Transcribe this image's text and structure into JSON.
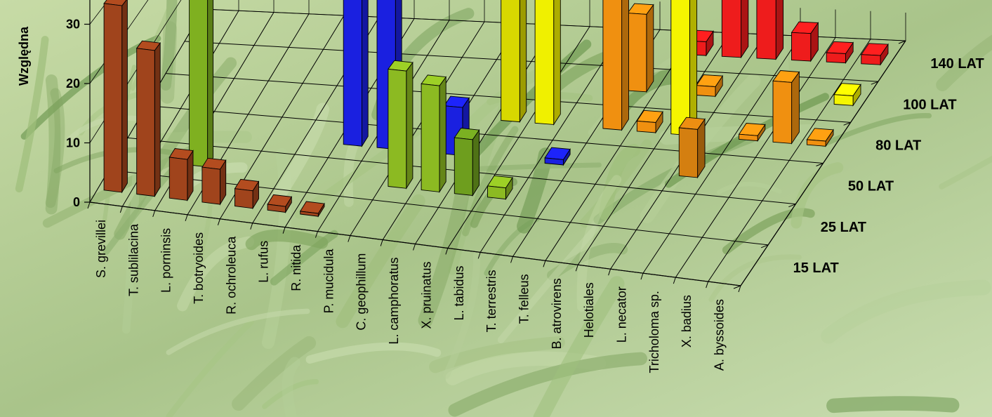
{
  "chart_data": {
    "type": "bar",
    "title": "",
    "ylabel": "Względna",
    "yticks": [
      "0",
      "10",
      "20",
      "30"
    ],
    "ylim": [
      0,
      32
    ],
    "categories": [
      "S. grevillei",
      "T. sublilacina",
      "L. porninsis",
      "T. botryoides",
      "R. ochroleuca",
      "L. rufus",
      "R. nitida",
      "P. mucidula",
      "C. geophillum",
      "L. camphoratus",
      "X. pruinatus",
      "L. tabidus",
      "T. terrestris",
      "T. felleus",
      "B. atrovirens",
      "Helotiales",
      "L. necator",
      "Tricholoma sp.",
      "X. badius",
      "A. byssoides"
    ],
    "series_labels": [
      "15 LAT",
      "25 LAT",
      "50 LAT",
      "80 LAT",
      "100 LAT",
      "140 LAT"
    ],
    "bars": [
      {
        "category": "S. grevillei",
        "series": "15 LAT",
        "value": 32,
        "color": "#a0441c"
      },
      {
        "category": "T. sublilacina",
        "series": "15 LAT",
        "value": 25,
        "color": "#a0441c"
      },
      {
        "category": "L. porninsis",
        "series": "15 LAT",
        "value": 7,
        "color": "#a0441c"
      },
      {
        "category": "T. botryoides",
        "series": "15 LAT",
        "value": 6,
        "color": "#a0441c"
      },
      {
        "category": "R. ochroleuca",
        "series": "15 LAT",
        "value": 3,
        "color": "#a0441c"
      },
      {
        "category": "L. rufus",
        "series": "15 LAT",
        "value": 1,
        "color": "#a0441c"
      },
      {
        "category": "R. nitida",
        "series": "15 LAT",
        "value": 0.5,
        "color": "#a0441c"
      },
      {
        "category": "L. porninsis",
        "series": "25 LAT",
        "value": 32,
        "color": "#7fb020"
      },
      {
        "category": "C. geophillum",
        "series": "25 LAT",
        "value": 21,
        "color": "#8cba22"
      },
      {
        "category": "L. camphoratus",
        "series": "25 LAT",
        "value": 19,
        "color": "#8cba22"
      },
      {
        "category": "X. pruinatus",
        "series": "25 LAT",
        "value": 10,
        "color": "#6e9e1e"
      },
      {
        "category": "L. tabidus",
        "series": "25 LAT",
        "value": 2,
        "color": "#8cba22"
      },
      {
        "category": "R. nitida",
        "series": "50 LAT",
        "value": 32,
        "color": "#1a20e0"
      },
      {
        "category": "P. mucidula",
        "series": "50 LAT",
        "value": 32,
        "color": "#1a20e0"
      },
      {
        "category": "T. terrestris",
        "series": "50 LAT",
        "value": 1,
        "color": "#1a20e0"
      },
      {
        "category": "L. camphoratus",
        "series": "50 LAT",
        "value": 9,
        "color": "#1a20e0"
      },
      {
        "category": "L. necator",
        "series": "50 LAT",
        "value": 9,
        "color": "#d47f10"
      },
      {
        "category": "X. pruinatus",
        "series": "80 LAT",
        "value": 32,
        "color": "#d8d800"
      },
      {
        "category": "L. tabidus",
        "series": "80 LAT",
        "value": 32,
        "color": "#f0f000"
      },
      {
        "category": "T. felleus",
        "series": "80 LAT",
        "value": 32,
        "color": "#f09010"
      },
      {
        "category": "Helotiales",
        "series": "80 LAT",
        "value": 32,
        "color": "#f5f500"
      },
      {
        "category": "T. felleus",
        "series": "100 LAT",
        "value": 16,
        "color": "#f09010"
      },
      {
        "category": "B. atrovirens",
        "series": "80 LAT",
        "value": 2,
        "color": "#f09010"
      },
      {
        "category": "Helotiales",
        "series": "100 LAT",
        "value": 2,
        "color": "#f09010"
      },
      {
        "category": "Tricholoma sp.",
        "series": "80 LAT",
        "value": 1,
        "color": "#f09010"
      },
      {
        "category": "X. badius",
        "series": "80 LAT",
        "value": 12,
        "color": "#f09010"
      },
      {
        "category": "A. byssoides",
        "series": "80 LAT",
        "value": 1,
        "color": "#f09010"
      },
      {
        "category": "A. byssoides",
        "series": "100 LAT",
        "value": 2,
        "color": "#f5f500"
      },
      {
        "category": "L. necator",
        "series": "140 LAT",
        "value": 32,
        "color": "#ee1c1c"
      },
      {
        "category": "B. atrovirens",
        "series": "140 LAT",
        "value": 3,
        "color": "#ee1c1c"
      },
      {
        "category": "Helotiales",
        "series": "140 LAT",
        "value": 20,
        "color": "#ee1c1c"
      },
      {
        "category": "Tricholoma sp.",
        "series": "140 LAT",
        "value": 6,
        "color": "#ee1c1c"
      },
      {
        "category": "X. badius",
        "series": "140 LAT",
        "value": 2,
        "color": "#ee1c1c"
      },
      {
        "category": "A. byssoides",
        "series": "140 LAT",
        "value": 2,
        "color": "#ee1c1c"
      }
    ]
  }
}
